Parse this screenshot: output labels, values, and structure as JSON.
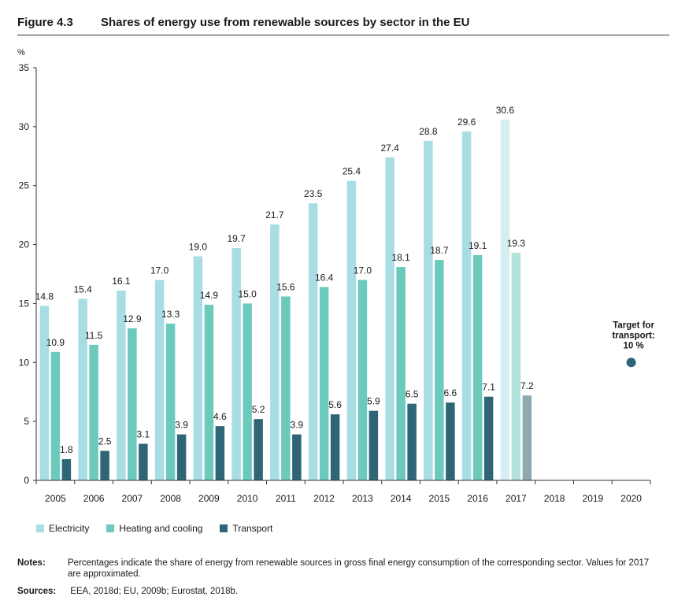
{
  "figure": {
    "number": "Figure 4.3",
    "title": "Shares of energy use from renewable sources by sector in the EU"
  },
  "colors": {
    "electricity": "#a8dde4",
    "electricity_approx": "#d4eef1",
    "heating": "#6ccabd",
    "heating_approx": "#b2e2dc",
    "transport": "#2f6677",
    "transport_approx": "#90a9b1",
    "target": "#2f6677"
  },
  "chart_data": {
    "type": "bar",
    "ylabel": "%",
    "ylim": [
      0,
      35
    ],
    "yticks": [
      0,
      5,
      10,
      15,
      20,
      25,
      30,
      35
    ],
    "categories": [
      "2005",
      "2006",
      "2007",
      "2008",
      "2009",
      "2010",
      "2011",
      "2012",
      "2013",
      "2014",
      "2015",
      "2016",
      "2017",
      "2018",
      "2019",
      "2020"
    ],
    "approximated_categories": [
      "2017"
    ],
    "series": [
      {
        "name": "Electricity",
        "key": "electricity",
        "values": [
          14.8,
          15.4,
          16.1,
          17.0,
          19.0,
          19.7,
          21.7,
          23.5,
          25.4,
          27.4,
          28.8,
          29.6,
          30.6,
          null,
          null,
          null
        ],
        "labels": [
          "14.8",
          "15.4",
          "16.1",
          "17.0",
          "19.0",
          "19.7",
          "21.7",
          "23.5",
          "25.4",
          "27.4",
          "28.8",
          "29.6",
          "30.6",
          "",
          "",
          ""
        ]
      },
      {
        "name": "Heating and cooling",
        "key": "heating",
        "values": [
          10.9,
          11.5,
          12.9,
          13.3,
          14.9,
          15.0,
          15.6,
          16.4,
          17.0,
          18.1,
          18.7,
          19.1,
          19.3,
          null,
          null,
          null
        ],
        "labels": [
          "10.9",
          "11.5",
          "12.9",
          "13.3",
          "14.9",
          "15.0",
          "15.6",
          "16.4",
          "17.0",
          "18.1",
          "18.7",
          "19.1",
          "19.3",
          "",
          "",
          ""
        ]
      },
      {
        "name": "Transport",
        "key": "transport",
        "values": [
          1.8,
          2.5,
          3.1,
          3.9,
          4.6,
          5.2,
          3.9,
          5.6,
          5.9,
          6.5,
          6.6,
          7.1,
          7.2,
          null,
          null,
          null
        ],
        "labels": [
          "1.8",
          "2.5",
          "3.1",
          "3.9",
          "4.6",
          "5.2",
          "3.9",
          "5.6",
          "5.9",
          "6.5",
          "6.6",
          "7.1",
          "7.2",
          "",
          "",
          ""
        ]
      }
    ],
    "target": {
      "category": "2020",
      "value": 10,
      "label_lines": [
        "Target for",
        "transport:",
        "10 %"
      ]
    },
    "legend": {
      "placement": "bottom-left",
      "entries": [
        "Electricity",
        "Heating and cooling",
        "Transport"
      ]
    }
  },
  "notes": {
    "label": "Notes:",
    "text": "Percentages indicate the share of energy from renewable sources in gross final energy consumption of the corresponding sector. Values for 2017 are approximated."
  },
  "sources": {
    "label": "Sources:",
    "text": "EEA, 2018d; EU, 2009b; Eurostat, 2018b."
  }
}
